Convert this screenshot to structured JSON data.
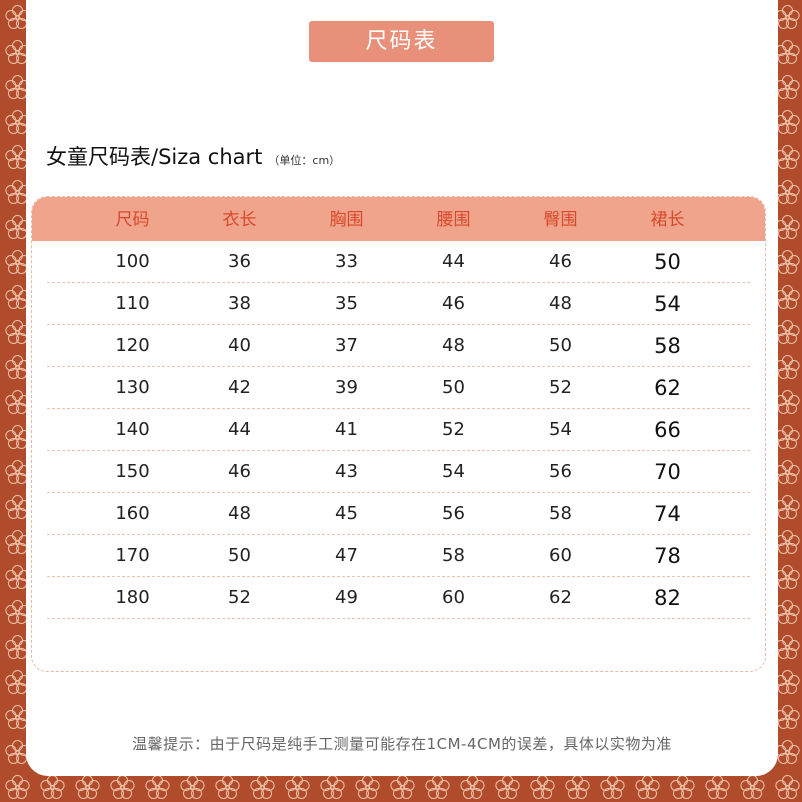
{
  "title": "尺码表",
  "heading": "女童尺码表/Siza chart",
  "unit": "（单位：cm）",
  "table": {
    "headers": [
      "尺码",
      "衣长",
      "胸围",
      "腰围",
      "臀围",
      "裙长"
    ],
    "rows": [
      [
        "100",
        "36",
        "33",
        "44",
        "46",
        "50"
      ],
      [
        "110",
        "38",
        "35",
        "46",
        "48",
        "54"
      ],
      [
        "120",
        "40",
        "37",
        "48",
        "50",
        "58"
      ],
      [
        "130",
        "42",
        "39",
        "50",
        "52",
        "62"
      ],
      [
        "140",
        "44",
        "41",
        "52",
        "54",
        "66"
      ],
      [
        "150",
        "46",
        "43",
        "54",
        "56",
        "70"
      ],
      [
        "160",
        "48",
        "45",
        "56",
        "58",
        "74"
      ],
      [
        "170",
        "50",
        "47",
        "58",
        "60",
        "78"
      ],
      [
        "180",
        "52",
        "49",
        "60",
        "62",
        "82"
      ]
    ]
  },
  "note": "温馨提示：由于尺码是纯手工测量可能存在1CM-4CM的误差，具体以实物为准",
  "colors": {
    "border": "#b04b2c",
    "accent": "#e9907a",
    "header_text": "#d9482a"
  }
}
